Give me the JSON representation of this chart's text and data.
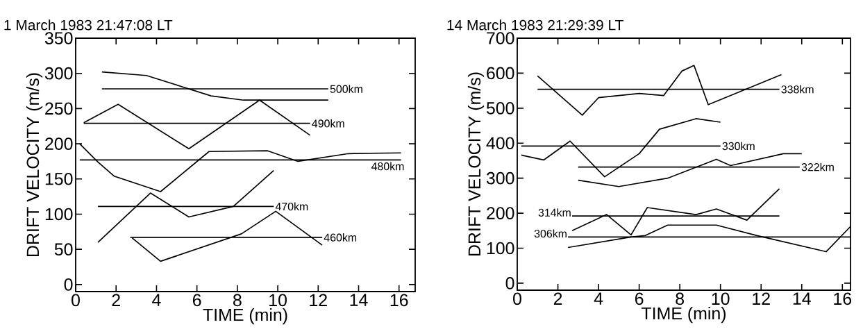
{
  "chart_data": [
    {
      "type": "line",
      "title": "1 March 1983  21:47:08 LT",
      "xlabel": "TIME (min)",
      "ylabel": "DRIFT VELOCITY (m/s)",
      "xlim": [
        0,
        16.8
      ],
      "ylim": [
        -10,
        350
      ],
      "xticks": [
        0,
        2,
        4,
        6,
        8,
        10,
        12,
        14,
        16
      ],
      "yticks": [
        0,
        50,
        100,
        150,
        200,
        250,
        300,
        350
      ],
      "grid": false,
      "series": [
        {
          "color": "#000000",
          "x": [
            1.3,
            3.5,
            6.7,
            8.3,
            12.5
          ],
          "values": [
            302,
            297,
            268,
            262,
            262
          ]
        },
        {
          "color": "#000000",
          "x": [
            1.3,
            12.5
          ],
          "values": [
            278,
            278
          ]
        },
        {
          "color": "#000000",
          "x": [
            0.4,
            2.1,
            5.6,
            9.1,
            11.6
          ],
          "values": [
            230,
            256,
            193,
            262,
            212
          ]
        },
        {
          "color": "#000000",
          "x": [
            0.4,
            11.6
          ],
          "values": [
            229,
            229
          ]
        },
        {
          "color": "#000000",
          "x": [
            0.2,
            1.1,
            1.9,
            4.2,
            6.6,
            9.5,
            11.0,
            13.5,
            16.1
          ],
          "values": [
            200,
            174,
            154,
            132,
            189,
            190,
            175,
            186,
            187
          ]
        },
        {
          "color": "#000000",
          "x": [
            0.2,
            16.1
          ],
          "values": [
            177,
            177
          ]
        },
        {
          "color": "#000000",
          "x": [
            1.1,
            3.7,
            5.6,
            7.8,
            9.8
          ],
          "values": [
            60,
            130,
            96,
            111,
            162
          ]
        },
        {
          "color": "#000000",
          "x": [
            1.1,
            9.8
          ],
          "values": [
            111,
            111
          ]
        },
        {
          "color": "#000000",
          "x": [
            2.8,
            4.2,
            8.2,
            9.9,
            12.2
          ],
          "values": [
            66,
            33,
            72,
            104,
            56
          ]
        },
        {
          "color": "#000000",
          "x": [
            2.7,
            12.2
          ],
          "values": [
            67,
            67
          ]
        }
      ],
      "annotations": [
        {
          "text": "500km",
          "x": 12.5,
          "y": 278
        },
        {
          "text": "490km",
          "x": 11.6,
          "y": 229
        },
        {
          "text": "480km",
          "x": 16.1,
          "y": 177
        },
        {
          "text": "470km",
          "x": 9.8,
          "y": 111
        },
        {
          "text": "460km",
          "x": 12.2,
          "y": 67
        }
      ]
    },
    {
      "type": "line",
      "title": "14 March 1983  21:29:39 LT",
      "xlabel": "TIME (min)",
      "ylabel": "DRIFT VELOCITY (m/s)",
      "xlim": [
        0,
        16.4
      ],
      "ylim": [
        -20,
        700
      ],
      "xticks": [
        0,
        2,
        4,
        6,
        8,
        10,
        12,
        14,
        16
      ],
      "yticks": [
        0,
        100,
        200,
        300,
        400,
        500,
        600,
        700
      ],
      "grid": false,
      "series": [
        {
          "color": "#000000",
          "x": [
            1.0,
            3.2,
            4.0,
            6.0,
            7.2,
            8.1,
            8.7,
            9.4,
            13.0
          ],
          "values": [
            592,
            480,
            530,
            542,
            536,
            606,
            622,
            510,
            596
          ]
        },
        {
          "color": "#000000",
          "x": [
            1.0,
            12.9
          ],
          "values": [
            554,
            554
          ]
        },
        {
          "color": "#000000",
          "x": [
            0.2,
            1.3,
            2.6,
            4.3,
            6.0,
            7.0,
            8.8,
            10.0
          ],
          "values": [
            366,
            352,
            406,
            304,
            370,
            440,
            470,
            460
          ]
        },
        {
          "color": "#000000",
          "x": [
            0.2,
            10.0
          ],
          "values": [
            392,
            392
          ]
        },
        {
          "color": "#000000",
          "x": [
            3.0,
            5.0,
            7.4,
            9.8,
            10.5,
            13.1,
            14.0
          ],
          "values": [
            294,
            276,
            300,
            354,
            336,
            370,
            370
          ]
        },
        {
          "color": "#000000",
          "x": [
            3.0,
            13.9
          ],
          "values": [
            332,
            332
          ]
        },
        {
          "color": "#000000",
          "x": [
            2.7,
            4.4,
            5.6,
            6.4,
            8.8,
            9.8,
            11.3,
            12.9
          ],
          "values": [
            150,
            196,
            138,
            216,
            196,
            212,
            180,
            270
          ]
        },
        {
          "color": "#000000",
          "x": [
            2.7,
            12.9
          ],
          "values": [
            192,
            192
          ]
        },
        {
          "color": "#000000",
          "x": [
            2.5,
            5.6,
            6.3,
            7.4,
            9.8,
            11.8,
            15.2,
            16.4
          ],
          "values": [
            102,
            132,
            136,
            166,
            166,
            136,
            90,
            162
          ]
        },
        {
          "color": "#000000",
          "x": [
            2.5,
            16.4
          ],
          "values": [
            132,
            132
          ]
        }
      ],
      "annotations": [
        {
          "text": "338km",
          "x": 12.9,
          "y": 554
        },
        {
          "text": "330km",
          "x": 10.0,
          "y": 392
        },
        {
          "text": "322km",
          "x": 13.9,
          "y": 332
        },
        {
          "text": "314km",
          "x": 2.7,
          "y": 192
        },
        {
          "text": "306km",
          "x": 2.5,
          "y": 132
        }
      ]
    }
  ]
}
